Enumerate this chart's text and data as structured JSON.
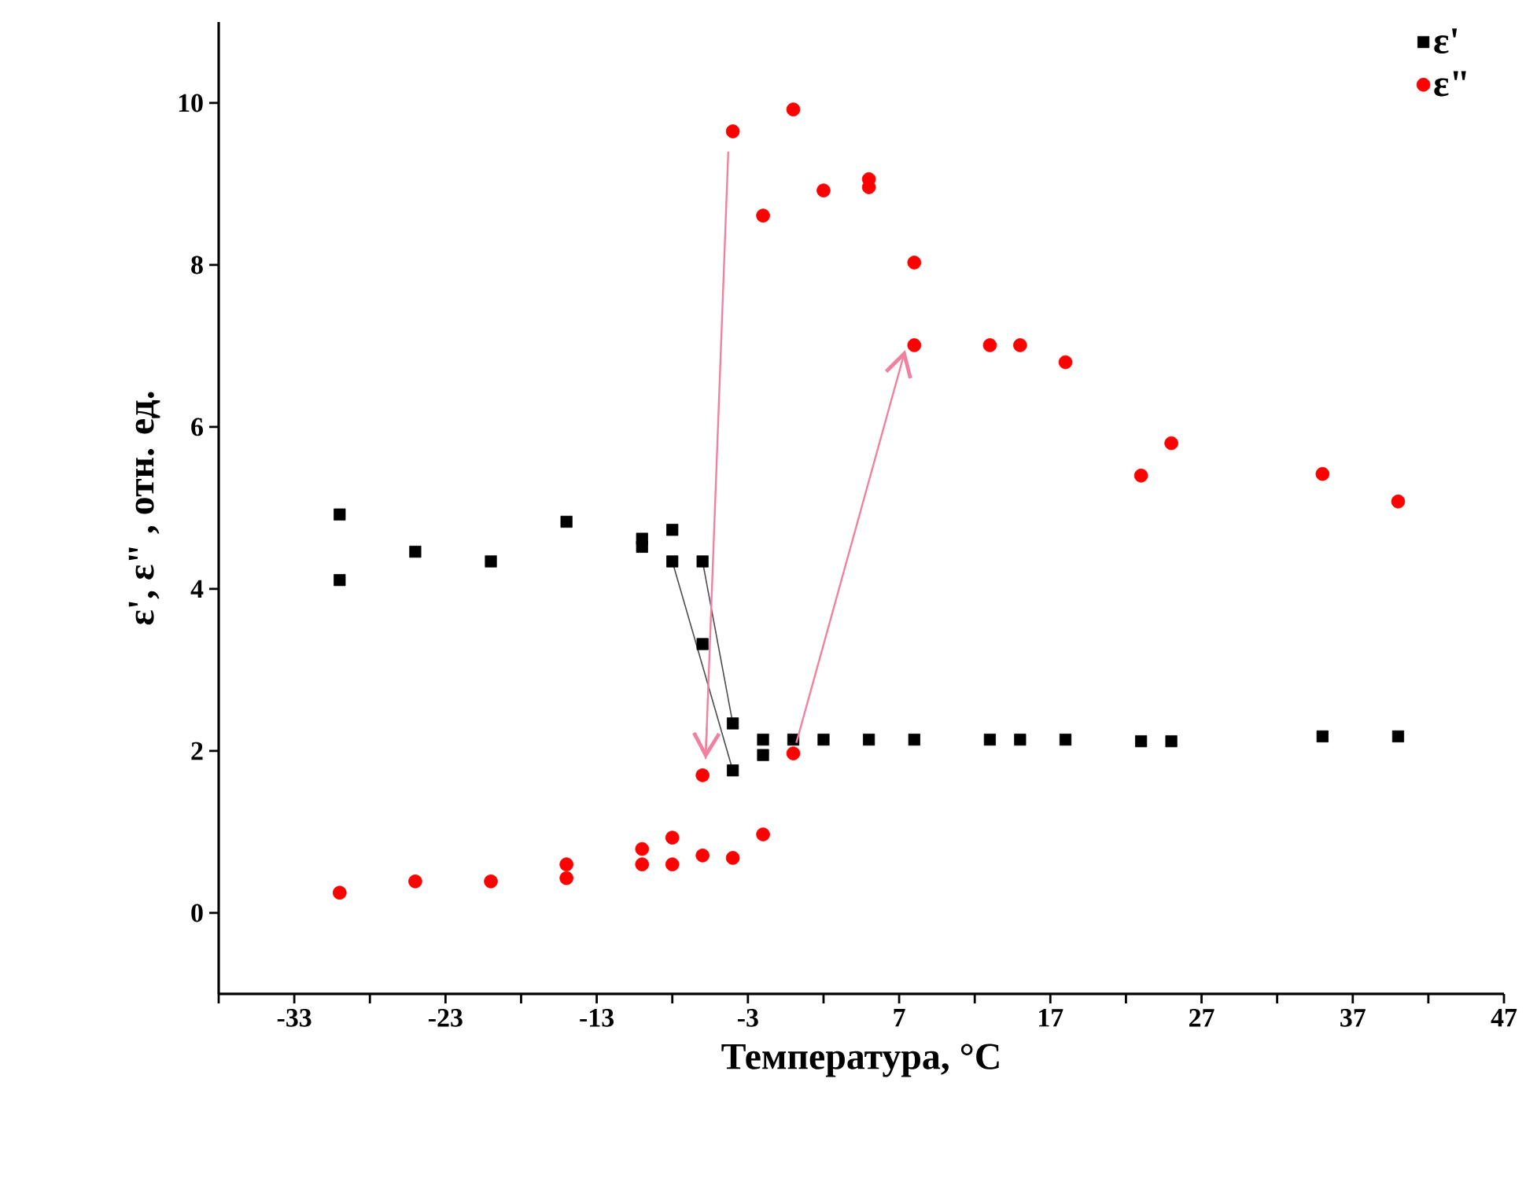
{
  "chart_data": {
    "type": "scatter",
    "xlabel": "Температура, °C",
    "ylabel": "ε', ε\" , отн. ед.",
    "xlim": [
      -38,
      47
    ],
    "ylim": [
      -1,
      11
    ],
    "xticks": [
      {
        "value": -38,
        "label": null
      },
      -33,
      {
        "value": -28,
        "label": null
      },
      -23,
      {
        "value": -18,
        "label": null
      },
      -13,
      {
        "value": -8,
        "label": null
      },
      -3,
      {
        "value": 2,
        "label": null
      },
      7,
      {
        "value": 12,
        "label": null
      },
      17,
      {
        "value": 22,
        "label": null
      },
      27,
      {
        "value": 32,
        "label": null
      },
      37,
      {
        "value": 42,
        "label": null
      },
      47
    ],
    "yticks": [
      0,
      2,
      4,
      6,
      8,
      10
    ],
    "grid": false,
    "legend": "top right",
    "series": [
      {
        "name": "ε'",
        "color": "#000000",
        "marker": "square",
        "x": [
          -30,
          -30,
          -25,
          -20,
          -15,
          -10,
          -10,
          -8,
          -8,
          -6,
          -6,
          -4,
          -4,
          -2,
          -2,
          0,
          2,
          5,
          8,
          13,
          15,
          18,
          23,
          25,
          35,
          40
        ],
        "values": [
          4.92,
          4.11,
          4.46,
          4.34,
          4.83,
          4.52,
          4.62,
          4.73,
          4.34,
          4.34,
          3.32,
          2.34,
          1.76,
          2.14,
          1.95,
          2.14,
          2.14,
          2.14,
          2.14,
          2.14,
          2.14,
          2.14,
          2.12,
          2.12,
          2.18,
          2.18
        ]
      },
      {
        "name": "ε\"",
        "color": "#ff0000",
        "marker": "circle",
        "x": [
          -30,
          -25,
          -20,
          -15,
          -15,
          -10,
          -10,
          -8,
          -8,
          -6,
          -4,
          -2,
          -6,
          0,
          -4,
          0,
          -2,
          2,
          5,
          5,
          8,
          8,
          13,
          15,
          18,
          23,
          25,
          35,
          40
        ],
        "values": [
          0.25,
          0.39,
          0.39,
          0.6,
          0.43,
          0.79,
          0.6,
          0.93,
          0.6,
          0.71,
          0.68,
          0.97,
          1.7,
          1.97,
          9.65,
          9.92,
          8.61,
          8.92,
          8.96,
          9.06,
          8.03,
          7.01,
          7.01,
          7.01,
          6.8,
          5.4,
          5.8,
          5.42,
          5.08
        ]
      },
      {
        "type": "line",
        "color": "#4c4c4c",
        "marker": "none",
        "x": [
          -8,
          -4
        ],
        "values": [
          4.34,
          1.76
        ]
      },
      {
        "type": "line",
        "color": "#4c4c4c",
        "marker": "none",
        "x": [
          -6,
          -4
        ],
        "values": [
          4.34,
          2.34
        ]
      }
    ]
  }
}
